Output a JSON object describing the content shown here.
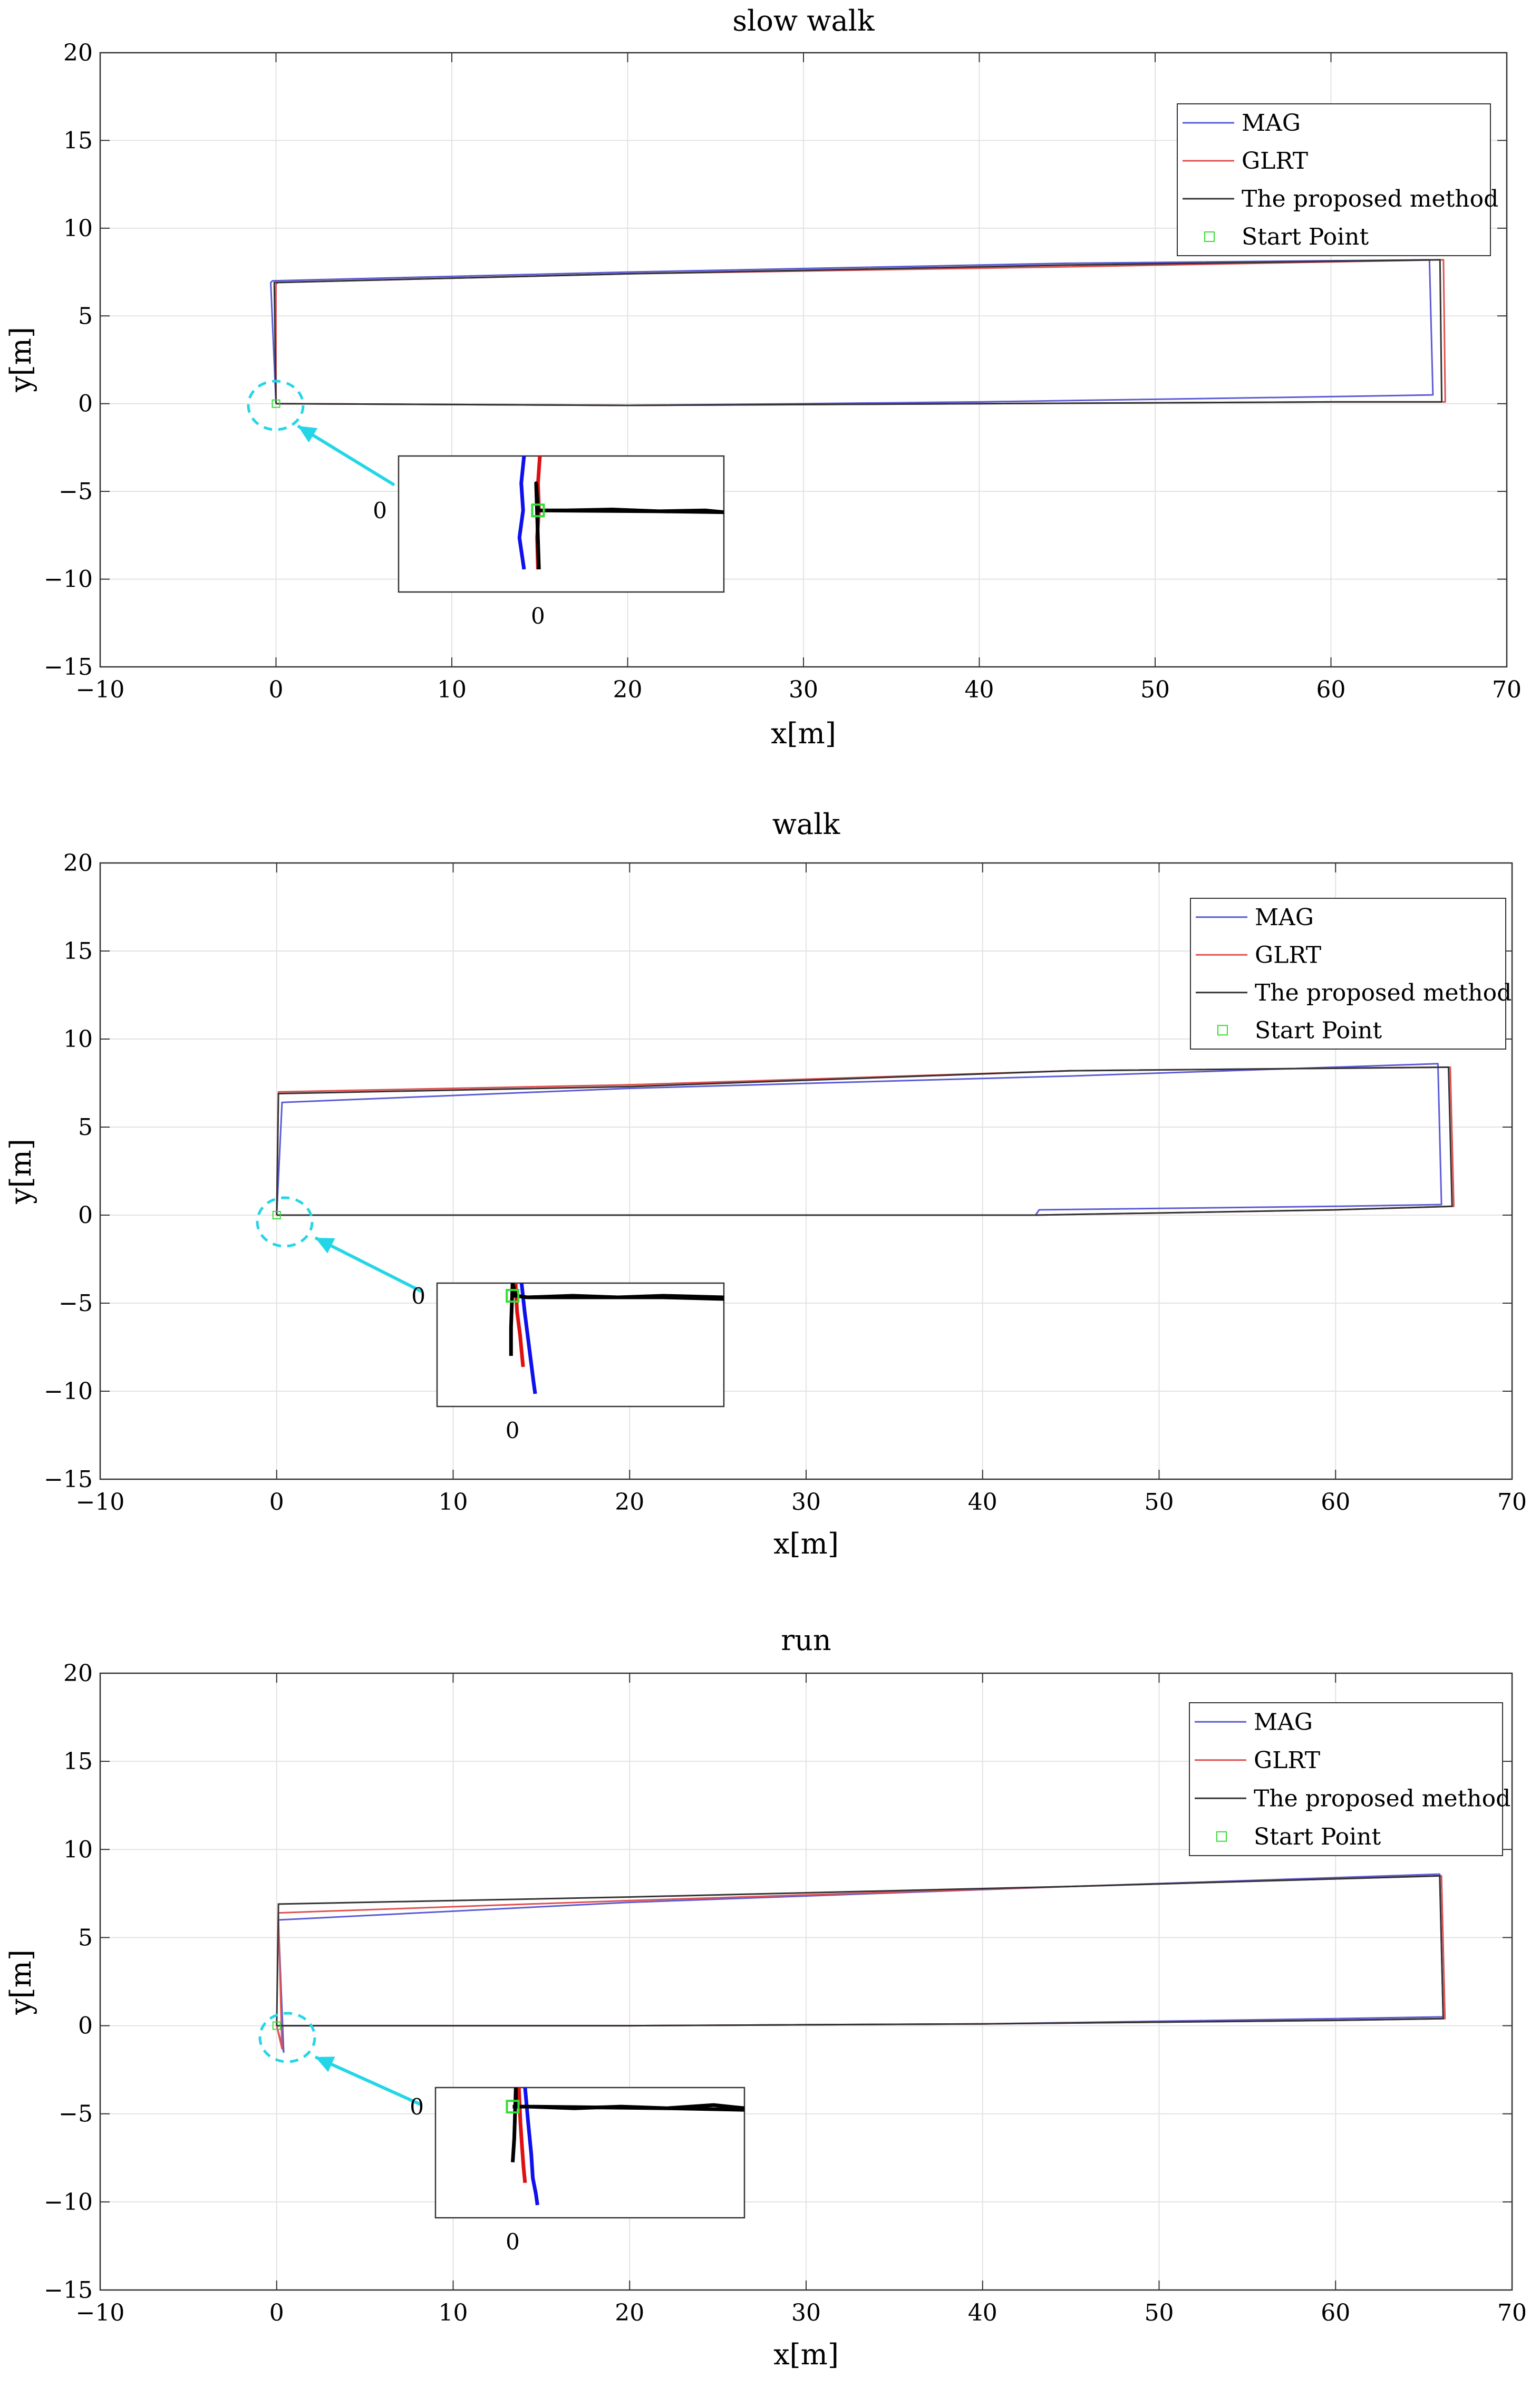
{
  "chart_data": [
    {
      "type": "line",
      "title": "slow walk",
      "xlabel": "x[m]",
      "ylabel": "y[m]",
      "xlim": [
        -10,
        70
      ],
      "ylim": [
        -15,
        20
      ],
      "xticks": [
        -10,
        0,
        10,
        20,
        30,
        40,
        50,
        60,
        70
      ],
      "yticks": [
        -15,
        -10,
        -5,
        0,
        5,
        10,
        15,
        20
      ],
      "grid": true,
      "legend_position": "top-right",
      "legend": [
        "MAG",
        "GLRT",
        "The proposed method",
        "Start Point"
      ],
      "series": [
        {
          "name": "MAG",
          "color": "#5b5bd6",
          "x": [
            0,
            20,
            40,
            60,
            65.8,
            65.6,
            45,
            20,
            -0.2,
            -0.3,
            0
          ],
          "y": [
            0,
            -0.1,
            0.1,
            0.4,
            0.5,
            8.2,
            8.0,
            7.5,
            7.0,
            6.9,
            0
          ]
        },
        {
          "name": "GLRT",
          "color": "#e05050",
          "x": [
            0,
            20,
            40,
            60,
            66.5,
            66.4,
            45,
            20,
            0.1,
            0,
            0
          ],
          "y": [
            0,
            -0.1,
            0.0,
            0.1,
            0.1,
            8.2,
            7.8,
            7.4,
            6.9,
            6.8,
            0
          ]
        },
        {
          "name": "The proposed method",
          "color": "#333333",
          "x": [
            0,
            20,
            40,
            60,
            66.3,
            66.2,
            45,
            20,
            -0.1,
            -0.1,
            0
          ],
          "y": [
            0,
            -0.1,
            0.0,
            0.1,
            0.1,
            8.2,
            7.9,
            7.4,
            6.9,
            6.9,
            0
          ]
        }
      ],
      "start_point": [
        0,
        0
      ],
      "inset": {
        "tick_x": "0",
        "tick_y": "0",
        "xlim": [
          -1.5,
          2.0
        ],
        "ylim": [
          -0.9,
          0.6
        ],
        "series": [
          {
            "name": "MAG",
            "color": "#1010ee",
            "x": [
              -0.15,
              -0.18,
              -0.16,
              -0.2,
              -0.15
            ],
            "y": [
              0.6,
              0.3,
              0.0,
              -0.3,
              -0.65
            ]
          },
          {
            "name": "GLRT",
            "color": "#dd1111",
            "x": [
              0.02,
              0.0,
              0.01,
              -0.01,
              0.0
            ],
            "y": [
              0.6,
              0.3,
              0.0,
              -0.3,
              -0.65
            ]
          },
          {
            "name": "The proposed method",
            "color": "#000000",
            "x": [
              0.0,
              0.0,
              0.3,
              0.8,
              1.3,
              1.8,
              2.0,
              2.0,
              1.3,
              0.0,
              -0.02,
              0.01
            ],
            "y": [
              0.0,
              0.0,
              0.0,
              0.01,
              -0.01,
              0.0,
              -0.02,
              -0.02,
              -0.01,
              0.0,
              0.3,
              -0.65
            ]
          }
        ]
      }
    },
    {
      "type": "line",
      "title": "walk",
      "xlabel": "x[m]",
      "ylabel": "y[m]",
      "xlim": [
        -10,
        70
      ],
      "ylim": [
        -15,
        20
      ],
      "xticks": [
        -10,
        0,
        10,
        20,
        30,
        40,
        50,
        60,
        70
      ],
      "yticks": [
        -15,
        -10,
        -5,
        0,
        5,
        10,
        15,
        20
      ],
      "grid": true,
      "legend_position": "top-right",
      "legend": [
        "MAG",
        "GLRT",
        "The proposed method",
        "Start Point"
      ],
      "series": [
        {
          "name": "MAG",
          "color": "#5b5bd6",
          "x": [
            0,
            20,
            43,
            43.2,
            60,
            66.0,
            65.8,
            45,
            20,
            0.3,
            0.3,
            0
          ],
          "y": [
            0,
            0,
            0,
            0.3,
            0.5,
            0.6,
            8.6,
            7.9,
            7.2,
            6.4,
            6.3,
            0
          ]
        },
        {
          "name": "GLRT",
          "color": "#e05050",
          "x": [
            0,
            20,
            43,
            60,
            66.7,
            66.5,
            45,
            20,
            0.1,
            0.1,
            0
          ],
          "y": [
            0,
            0,
            0,
            0.3,
            0.5,
            8.4,
            8.2,
            7.4,
            7.0,
            6.9,
            0
          ]
        },
        {
          "name": "The proposed method",
          "color": "#333333",
          "x": [
            0,
            20,
            43,
            60,
            66.6,
            66.4,
            45,
            20,
            0.1,
            0.1,
            0
          ],
          "y": [
            0,
            0,
            0,
            0.3,
            0.5,
            8.4,
            8.2,
            7.3,
            6.9,
            6.9,
            0
          ]
        }
      ],
      "start_point": [
        0,
        0
      ],
      "inset": {
        "tick_x": "0",
        "tick_y": "0",
        "xlim": [
          -0.5,
          1.4
        ],
        "ylim": [
          -0.7,
          0.08
        ],
        "series": [
          {
            "name": "MAG",
            "color": "#1010ee",
            "x": [
              0.06,
              0.08,
              0.1,
              0.12,
              0.14,
              0.15
            ],
            "y": [
              0.08,
              -0.1,
              -0.25,
              -0.4,
              -0.55,
              -0.62
            ]
          },
          {
            "name": "GLRT",
            "color": "#dd1111",
            "x": [
              0.02,
              0.03,
              0.05,
              0.06,
              0.07
            ],
            "y": [
              0.08,
              -0.1,
              -0.25,
              -0.35,
              -0.45
            ]
          },
          {
            "name": "The proposed method",
            "color": "#000000",
            "x": [
              0.0,
              0.02,
              0.1,
              0.4,
              0.7,
              1.0,
              1.4,
              1.4,
              1.0,
              0.1,
              0.02,
              0.0,
              -0.01,
              -0.01
            ],
            "y": [
              0.0,
              0.0,
              -0.01,
              0.0,
              -0.01,
              0.0,
              -0.01,
              -0.02,
              -0.01,
              -0.01,
              0.0,
              0.08,
              -0.2,
              -0.38
            ]
          }
        ]
      }
    },
    {
      "type": "line",
      "title": "run",
      "xlabel": "x[m]",
      "ylabel": "y[m]",
      "xlim": [
        -10,
        70
      ],
      "ylim": [
        -15,
        20
      ],
      "xticks": [
        -10,
        0,
        10,
        20,
        30,
        40,
        50,
        60,
        70
      ],
      "yticks": [
        -15,
        -10,
        -5,
        0,
        5,
        10,
        15,
        20
      ],
      "grid": true,
      "legend_position": "top-right",
      "legend": [
        "MAG",
        "GLRT",
        "The proposed method",
        "Start Point"
      ],
      "series": [
        {
          "name": "MAG",
          "color": "#5b5bd6",
          "x": [
            0,
            20,
            40,
            60,
            66.1,
            65.9,
            45,
            20,
            0.1,
            0.1,
            0.4,
            0
          ],
          "y": [
            0,
            0,
            0.1,
            0.4,
            0.5,
            8.6,
            7.9,
            7.0,
            6.0,
            5.9,
            -1.5,
            0
          ]
        },
        {
          "name": "GLRT",
          "color": "#e05050",
          "x": [
            0,
            20,
            40,
            60,
            66.2,
            66.0,
            45,
            20,
            0.1,
            0.1,
            0.3,
            0
          ],
          "y": [
            0,
            0,
            0.1,
            0.3,
            0.4,
            8.5,
            7.9,
            7.1,
            6.4,
            6.3,
            -1.3,
            0
          ]
        },
        {
          "name": "The proposed method",
          "color": "#333333",
          "x": [
            0,
            20,
            40,
            60,
            66.1,
            65.9,
            45,
            20,
            0.1,
            0.1,
            0
          ],
          "y": [
            0,
            0,
            0.1,
            0.3,
            0.4,
            8.5,
            7.9,
            7.3,
            6.9,
            6.8,
            0
          ]
        }
      ],
      "start_point": [
        0,
        0
      ],
      "inset": {
        "tick_x": "0",
        "tick_y": "0",
        "xlim": [
          -0.5,
          1.5
        ],
        "ylim": [
          -0.7,
          0.12
        ],
        "series": [
          {
            "name": "MAG",
            "color": "#1010ee",
            "x": [
              0.08,
              0.1,
              0.12,
              0.13,
              0.15,
              0.16
            ],
            "y": [
              0.12,
              -0.1,
              -0.3,
              -0.45,
              -0.55,
              -0.62
            ]
          },
          {
            "name": "GLRT",
            "color": "#dd1111",
            "x": [
              0.04,
              0.05,
              0.06,
              0.07,
              0.08
            ],
            "y": [
              0.12,
              -0.1,
              -0.25,
              -0.38,
              -0.48
            ]
          },
          {
            "name": "The proposed method",
            "color": "#000000",
            "x": [
              0.0,
              0.02,
              0.1,
              0.4,
              0.7,
              1.0,
              1.3,
              1.5,
              1.5,
              1.0,
              0.1,
              0.02,
              0.02,
              0.01,
              0.0
            ],
            "y": [
              0.0,
              0.0,
              0.0,
              -0.01,
              0.0,
              -0.01,
              0.01,
              -0.01,
              -0.02,
              -0.01,
              0.0,
              0.0,
              0.12,
              -0.2,
              -0.35
            ]
          }
        ]
      }
    }
  ]
}
